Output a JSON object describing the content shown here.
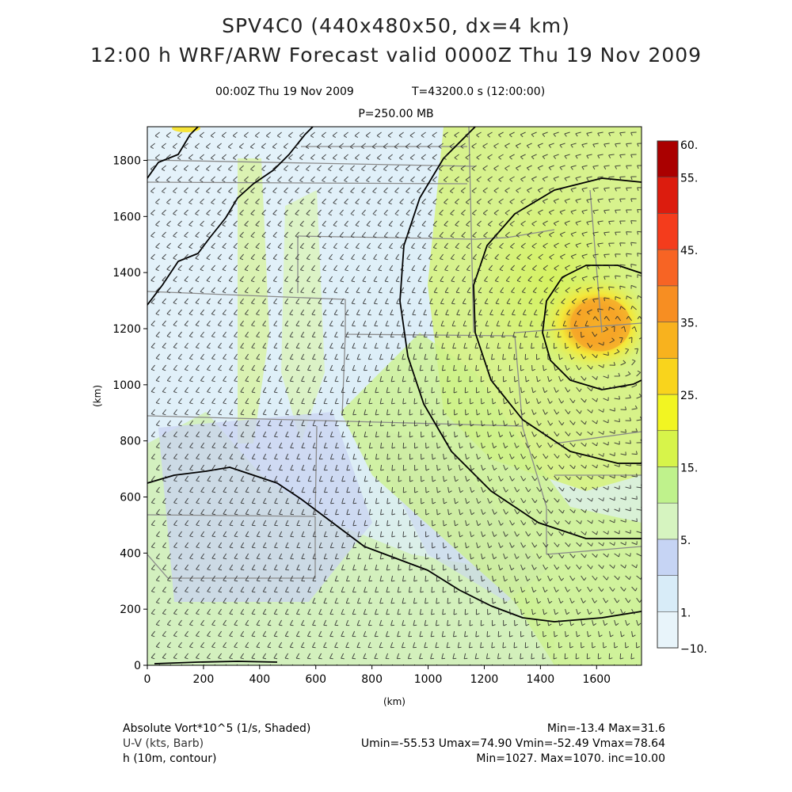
{
  "header": {
    "title_line1": "SPV4C0 (440x480x50, dx=4 km)",
    "title_line2": "12:00 h WRF/ARW Forecast valid 0000Z Thu 19 Nov 2009",
    "subtitle_time": "00:00Z Thu 19 Nov 2009",
    "subtitle_t": "T=43200.0 s (12:00:00)",
    "subtitle_level": "P=250.00 MB"
  },
  "chart_data": {
    "type": "heatmap",
    "xlabel": "(km)",
    "ylabel": "(km)",
    "xlim": [
      0,
      1760
    ],
    "ylim": [
      0,
      1920
    ],
    "x_ticks": [
      0,
      200,
      400,
      600,
      800,
      1000,
      1200,
      1400,
      1600
    ],
    "y_ticks": [
      0,
      200,
      400,
      600,
      800,
      1000,
      1200,
      1400,
      1600,
      1800
    ],
    "colorbar": {
      "levels": [
        -10,
        1,
        3,
        5,
        10,
        15,
        20,
        25,
        30,
        35,
        40,
        45,
        50,
        55,
        60
      ],
      "labels": [
        "−10.",
        "1.",
        "5.",
        "15.",
        "25.",
        "35.",
        "45.",
        "55.",
        "60."
      ],
      "colors": [
        "#e8f4fa",
        "#d8ecf8",
        "#c6d4f4",
        "#d6f4c0",
        "#bff28c",
        "#d7f44a",
        "#f2f522",
        "#f9d41c",
        "#f8b21e",
        "#f78e22",
        "#f76424",
        "#f43c1c",
        "#dc1c0e",
        "#aa0000"
      ]
    },
    "contours_h_m": [
      1030,
      1040,
      1050,
      1060,
      1070
    ],
    "low_center_km": [
      1600,
      1230
    ],
    "fields": [
      {
        "name": "Absolute Vort*10^5 (1/s, Shaded)",
        "min": -13.4,
        "max": 31.6
      },
      {
        "name": "U-V (kts, Barb)",
        "umin": -55.53,
        "umax": 74.9,
        "vmin": -52.49,
        "vmax": 78.64
      },
      {
        "name": "h (10m, contour)",
        "min": 1027,
        "max": 1070,
        "inc": 10
      }
    ]
  },
  "footer": {
    "field1_label": "Absolute Vort*10^5 (1/s, Shaded)",
    "field1_stats": "Min=-13.4 Max=31.6",
    "field2_label": "U-V (kts, Barb)",
    "field2_stats": "Umin=-55.53 Umax=74.90 Vmin=-52.49 Vmax=78.64",
    "field3_label": "h (10m, contour)",
    "field3_stats": "Min=1027. Max=1070. inc=10.00"
  }
}
